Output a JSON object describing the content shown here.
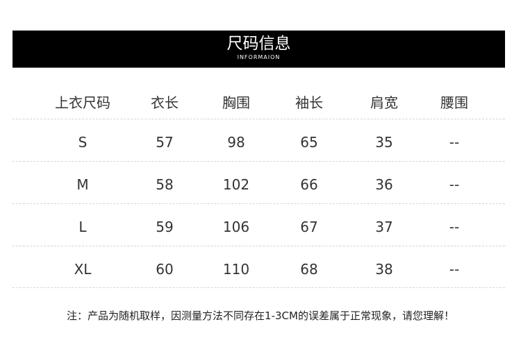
{
  "banner": {
    "title": "尺码信息",
    "subtitle": "INFORMAION"
  },
  "table": {
    "headers": [
      "上衣尺码",
      "衣长",
      "胸围",
      "袖长",
      "肩宽",
      "腰围"
    ],
    "rows": [
      [
        "S",
        "57",
        "98",
        "65",
        "35",
        "--"
      ],
      [
        "M",
        "58",
        "102",
        "66",
        "36",
        "--"
      ],
      [
        "L",
        "59",
        "106",
        "67",
        "37",
        "--"
      ],
      [
        "XL",
        "60",
        "110",
        "68",
        "38",
        "--"
      ]
    ]
  },
  "note": "注：产品为随机取样，因测量方法不同存在1-3CM的误差属于正常现象，请您理解！"
}
